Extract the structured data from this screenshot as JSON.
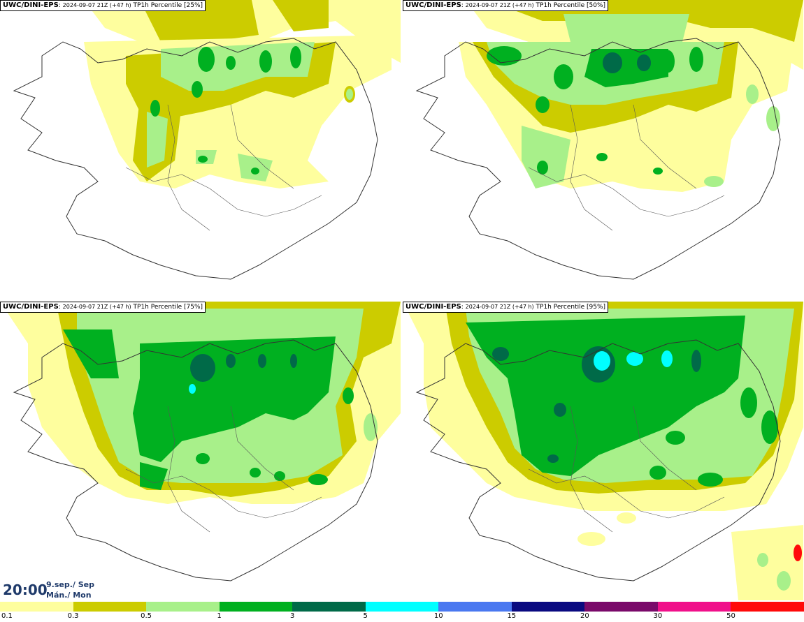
{
  "panels": [
    {
      "model": "UWC/DINI-EPS",
      "run": "2024-09-07 21Z (+47 h)",
      "field": "TP1h Percentile [25%]"
    },
    {
      "model": "UWC/DINI-EPS",
      "run": "2024-09-07 21Z (+47 h)",
      "field": "TP1h Percentile [50%]"
    },
    {
      "model": "UWC/DINI-EPS",
      "run": "2024-09-07 21Z (+47 h)",
      "field": "TP1h Percentile [75%]"
    },
    {
      "model": "UWC/DINI-EPS",
      "run": "2024-09-07 21Z (+47 h)",
      "field": "TP1h Percentile [95%]"
    }
  ],
  "time": {
    "clock": "20:00",
    "date_line1": "9.sep./ Sep",
    "date_line2": "Mán./ Mon"
  },
  "legend": {
    "ticks": [
      "0.1",
      "0.3",
      "0.5",
      "1",
      "3",
      "5",
      "10",
      "15",
      "20",
      "30",
      "50"
    ],
    "colors": [
      "#fefe9e",
      "#cccc00",
      "#a8f08a",
      "#00b020",
      "#006a48",
      "#00ffff",
      "#4a78f0",
      "#0a0a80",
      "#7a0a6a",
      "#f0108a",
      "#ff0a0a"
    ]
  },
  "colors": {
    "light_yellow": "#fefe9e",
    "olive": "#cccc00",
    "light_green": "#a8f08a",
    "green": "#00b020",
    "dark_green": "#006a48",
    "cyan": "#00ffff"
  }
}
